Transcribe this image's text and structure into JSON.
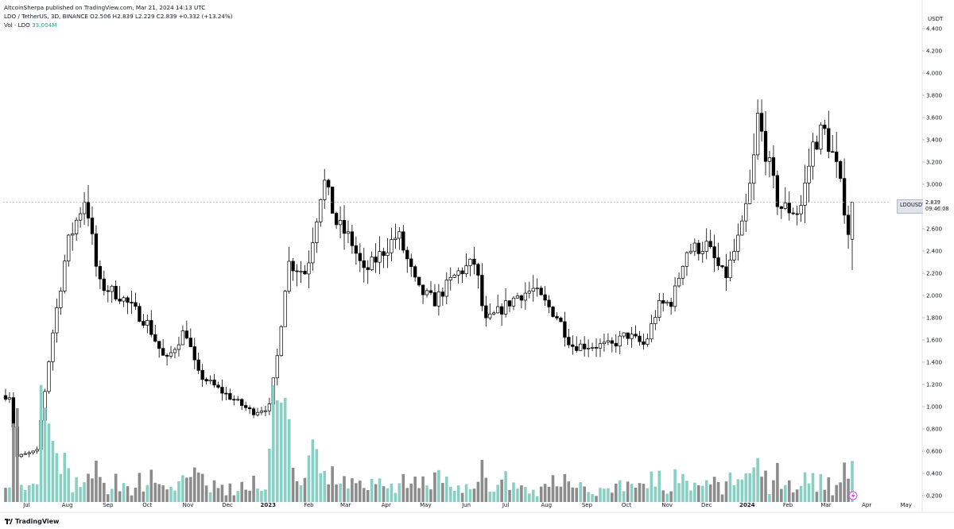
{
  "header": {
    "published": "AltcoinSherpa published on TradingView.com, Mar 21, 2024 14:13 UTC",
    "symbol_line": "LDO / TetherUS, 3D, BINANCE  O2.506  H2.839  L2.229  C2.839  +0.332 (+13.24%)",
    "vol_label": "Vol · LDO",
    "vol_value": "33.004M"
  },
  "price_label": {
    "symbol": "LDOUSDT",
    "price": "2.839",
    "countdown": "09:46:08"
  },
  "footer": {
    "brand": "TradingView"
  },
  "colors": {
    "up_body": "#ffffff",
    "down_body": "#000000",
    "wick": "#000000",
    "vol_up": "#89d0c4",
    "vol_down": "#8c8c8c",
    "axis_text": "#131722",
    "axis_line": "#e0e3eb"
  },
  "chart_data": {
    "type": "candlestick",
    "title": "LDO / TetherUS, 3D, BINANCE",
    "y_axis_unit": "USDT",
    "ylim": [
      0.1,
      4.5
    ],
    "y_ticks": [
      "4.400",
      "4.200",
      "4.000",
      "3.800",
      "3.600",
      "3.400",
      "3.200",
      "3.000",
      "2.800",
      "2.600",
      "2.400",
      "2.200",
      "2.000",
      "1.800",
      "1.600",
      "1.400",
      "1.200",
      "1.000",
      "0.800",
      "0.600",
      "0.400",
      "0.200"
    ],
    "x_ticks": [
      "Jul",
      "Aug",
      "Sep",
      "Oct",
      "Nov",
      "Dec",
      "2023",
      "Feb",
      "Mar",
      "Apr",
      "May",
      "Jun",
      "Jul",
      "Aug",
      "Sep",
      "Oct",
      "Nov",
      "Dec",
      "2024",
      "Feb",
      "Mar",
      "Apr",
      "May"
    ],
    "bold_x_ticks": [
      "2023",
      "2024"
    ],
    "volume_scale_max_millions": 100,
    "anchor_points": [
      {
        "date": "2022-06-18",
        "close": 1.1
      },
      {
        "date": "2022-06-24",
        "close": 0.55
      },
      {
        "date": "2022-07-09",
        "close": 0.6
      },
      {
        "date": "2022-07-20",
        "close": 1.6
      },
      {
        "date": "2022-08-01",
        "close": 2.45
      },
      {
        "date": "2022-08-15",
        "close": 2.9
      },
      {
        "date": "2022-08-25",
        "close": 2.1
      },
      {
        "date": "2022-09-10",
        "close": 2.0
      },
      {
        "date": "2022-10-01",
        "close": 1.75
      },
      {
        "date": "2022-10-15",
        "close": 1.4
      },
      {
        "date": "2022-10-30",
        "close": 1.7
      },
      {
        "date": "2022-11-08",
        "close": 1.3
      },
      {
        "date": "2022-11-25",
        "close": 1.15
      },
      {
        "date": "2022-12-20",
        "close": 0.95
      },
      {
        "date": "2023-01-02",
        "close": 1.0
      },
      {
        "date": "2023-01-08",
        "close": 1.45
      },
      {
        "date": "2023-01-16",
        "close": 2.3
      },
      {
        "date": "2023-01-30",
        "close": 2.2
      },
      {
        "date": "2023-02-12",
        "close": 3.05
      },
      {
        "date": "2023-02-22",
        "close": 2.65
      },
      {
        "date": "2023-03-05",
        "close": 2.5
      },
      {
        "date": "2023-03-15",
        "close": 2.2
      },
      {
        "date": "2023-04-10",
        "close": 2.55
      },
      {
        "date": "2023-04-25",
        "close": 2.05
      },
      {
        "date": "2023-05-08",
        "close": 1.95
      },
      {
        "date": "2023-05-25",
        "close": 2.2
      },
      {
        "date": "2023-06-08",
        "close": 2.3
      },
      {
        "date": "2023-06-15",
        "close": 1.75
      },
      {
        "date": "2023-07-10",
        "close": 2.0
      },
      {
        "date": "2023-07-22",
        "close": 2.05
      },
      {
        "date": "2023-08-10",
        "close": 1.8
      },
      {
        "date": "2023-08-20",
        "close": 1.55
      },
      {
        "date": "2023-09-10",
        "close": 1.55
      },
      {
        "date": "2023-09-20",
        "close": 1.55
      },
      {
        "date": "2023-10-01",
        "close": 1.65
      },
      {
        "date": "2023-10-15",
        "close": 1.55
      },
      {
        "date": "2023-10-25",
        "close": 1.9
      },
      {
        "date": "2023-11-05",
        "close": 1.95
      },
      {
        "date": "2023-11-15",
        "close": 2.4
      },
      {
        "date": "2023-12-01",
        "close": 2.45
      },
      {
        "date": "2023-12-15",
        "close": 2.15
      },
      {
        "date": "2023-12-28",
        "close": 2.6
      },
      {
        "date": "2024-01-05",
        "close": 3.1
      },
      {
        "date": "2024-01-09",
        "close": 3.6
      },
      {
        "date": "2024-01-25",
        "close": 2.8
      },
      {
        "date": "2024-02-10",
        "close": 2.75
      },
      {
        "date": "2024-02-20",
        "close": 3.35
      },
      {
        "date": "2024-02-28",
        "close": 3.5
      },
      {
        "date": "2024-03-08",
        "close": 3.2
      },
      {
        "date": "2024-03-15",
        "close": 2.8
      },
      {
        "date": "2024-03-19",
        "close": 2.51
      },
      {
        "date": "2024-03-21",
        "close": 2.839
      }
    ],
    "last_candle": {
      "open": 2.506,
      "high": 2.839,
      "low": 2.229,
      "close": 2.839,
      "change": 0.332,
      "change_pct": 13.24
    }
  }
}
